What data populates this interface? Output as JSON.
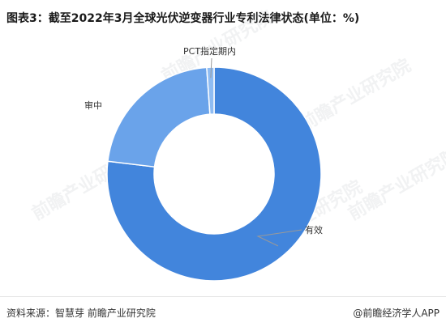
{
  "title": "图表3：截至2022年3月全球光伏逆变器行业专利法律状态(单位：%)",
  "source": "资料来源：智慧芽 前瞻产业研究院",
  "brand": "@前瞻经济学人APP",
  "watermark": "前瞻产业研究院",
  "colors": {
    "slice_main": "#4285dc",
    "slice_secondary": "#6aa3ea",
    "slice_small": "#8fbcf2",
    "slice_border": "#ffffff",
    "leader_line": "#999999"
  },
  "chart_data": {
    "type": "pie",
    "donut": true,
    "title": "图表3：截至2022年3月全球光伏逆变器行业专利法律状态(单位：%)",
    "series": [
      {
        "labels": [
          "有效",
          "审中",
          "PCT指定期内"
        ],
        "values": [
          76.9,
          22.0,
          1.1
        ]
      }
    ]
  }
}
